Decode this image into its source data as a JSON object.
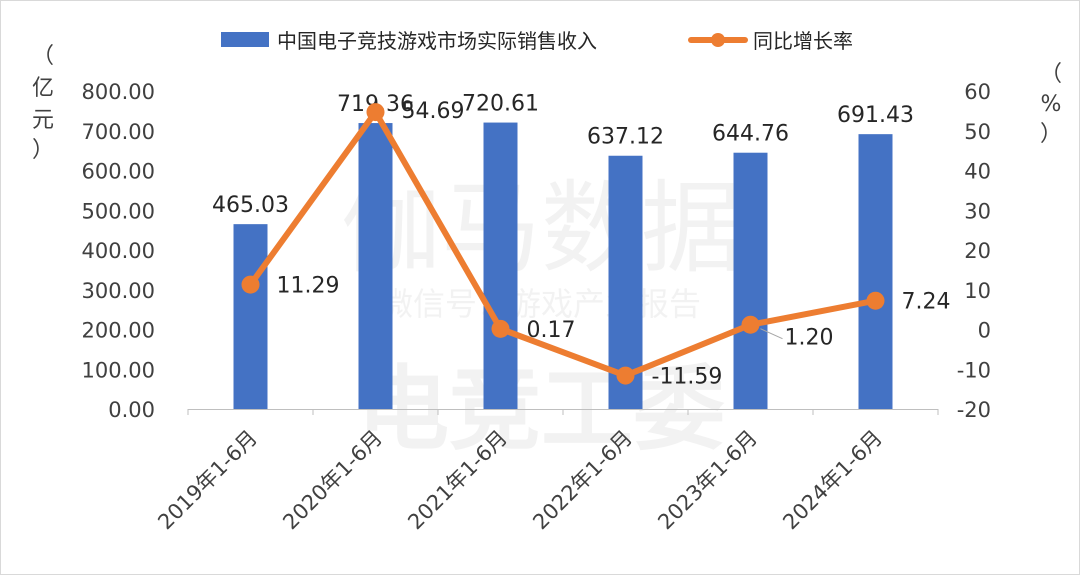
{
  "chart_data": {
    "type": "bar+line",
    "categories": [
      "2019年1-6月",
      "2020年1-6月",
      "2021年1-6月",
      "2022年1-6月",
      "2023年1-6月",
      "2024年1-6月"
    ],
    "series": [
      {
        "name": "中国电子竞技游戏市场实际销售收入",
        "type": "bar",
        "axis": "left",
        "color": "#4472C4",
        "values": [
          465.03,
          719.36,
          720.61,
          637.12,
          644.76,
          691.43
        ],
        "labels": [
          "465.03",
          "719.36",
          "720.61",
          "637.12",
          "644.76",
          "691.43"
        ]
      },
      {
        "name": "同比增长率",
        "type": "line",
        "axis": "right",
        "color": "#ED7D31",
        "values": [
          11.29,
          54.69,
          0.17,
          -11.59,
          1.2,
          7.24
        ],
        "labels": [
          "11.29",
          "54.69",
          "0.17",
          "-11.59",
          "1.20",
          "7.24"
        ]
      }
    ],
    "left_axis": {
      "unit_label": [
        "（",
        "亿",
        "元",
        "）"
      ],
      "ylim": [
        0,
        800
      ],
      "ticks": [
        "0.00",
        "100.00",
        "200.00",
        "300.00",
        "400.00",
        "500.00",
        "600.00",
        "700.00",
        "800.00"
      ]
    },
    "right_axis": {
      "unit_label": [
        "（",
        "%",
        "）"
      ],
      "ylim": [
        -20,
        60
      ],
      "ticks": [
        "-20",
        "-10",
        "0",
        "10",
        "20",
        "30",
        "40",
        "50",
        "60"
      ]
    },
    "grid": false,
    "legend_position": "top"
  },
  "watermark": {
    "line1": "伽马数据",
    "line2": "微信号：游戏产业报告",
    "line3": "电竞工委"
  }
}
